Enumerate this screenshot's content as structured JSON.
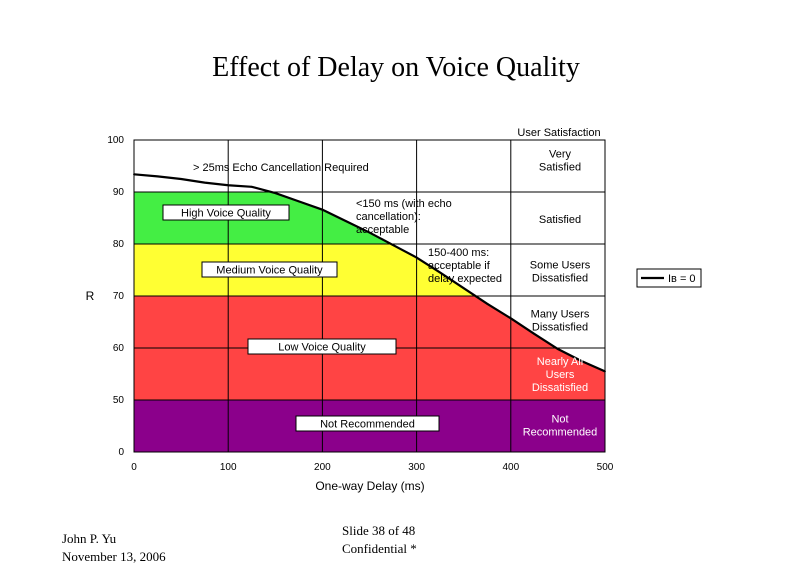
{
  "slide": {
    "title": "Effect of Delay on Voice Quality",
    "author": "John P. Yu",
    "date": "November 13, 2006",
    "slide_number": "Slide 38  of 48",
    "confidentiality": "Confidential *"
  },
  "chart_data": {
    "type": "line",
    "title": "",
    "xlabel": "One-way Delay (ms)",
    "ylabel": "R",
    "xlim": [
      0,
      500
    ],
    "ylim": [
      0,
      100
    ],
    "y_axis_break": "axis jumps from 0 to 50",
    "x_ticks": [
      "0",
      "100",
      "200",
      "300",
      "400",
      "500"
    ],
    "y_ticks": [
      "0",
      "50",
      "60",
      "70",
      "80",
      "90",
      "100"
    ],
    "grid": true,
    "legend": {
      "position": "right",
      "entries": [
        "Iʙ = 0"
      ]
    },
    "series": [
      {
        "name": "Iʙ = 0",
        "x": [
          0,
          25,
          50,
          75,
          100,
          125,
          150,
          175,
          200,
          225,
          250,
          275,
          300,
          325,
          350,
          375,
          400,
          425,
          450,
          475,
          500
        ],
        "y": [
          93.4,
          93.0,
          92.5,
          91.8,
          91.3,
          91.0,
          89.8,
          88.2,
          86.6,
          84.4,
          82.2,
          79.8,
          77.4,
          74.5,
          71.5,
          68.5,
          65.7,
          62.7,
          59.8,
          57.5,
          55.5
        ]
      }
    ],
    "bands": [
      {
        "from": 90,
        "to": 100,
        "color": "#ffffff",
        "satisfaction": "Very Satisfied"
      },
      {
        "from": 80,
        "to": 90,
        "color": "#44ee44",
        "satisfaction": "Satisfied"
      },
      {
        "from": 70,
        "to": 80,
        "color": "#ffff33",
        "satisfaction": "Some Users Dissatisfied"
      },
      {
        "from": 60,
        "to": 70,
        "color": "#ff4444",
        "satisfaction": "Many Users Dissatisfied"
      },
      {
        "from": 50,
        "to": 60,
        "color": "#ff4444",
        "satisfaction": "Nearly All Users Dissatisfied"
      },
      {
        "from": 0,
        "to": 50,
        "color": "#8b008b",
        "satisfaction": "Not Recommended"
      }
    ],
    "satisfaction_header": "User Satisfaction",
    "quality_labels": [
      "High Voice Quality",
      "Medium Voice Quality",
      "Low Voice Quality",
      "Not Recommended"
    ],
    "annotations": [
      "> 25ms Echo Cancellation Required",
      "<150 ms (with echo cancellation): acceptable",
      "150-400 ms: acceptable if delay expected"
    ]
  }
}
